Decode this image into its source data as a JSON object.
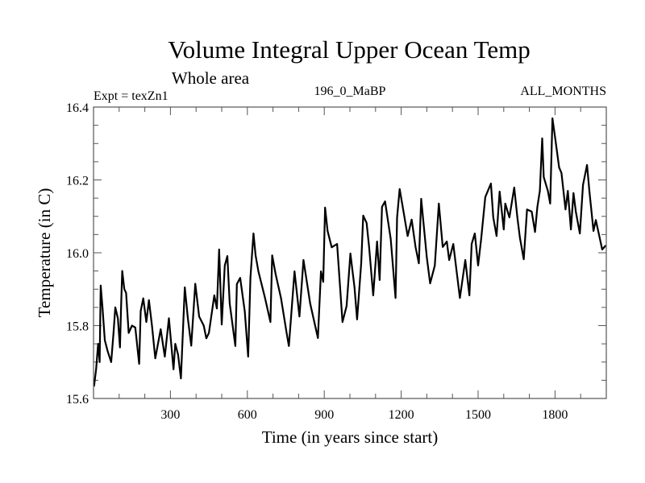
{
  "chart_data": {
    "type": "line",
    "title": "Volume Integral Upper Ocean Temp",
    "subtitle": "Whole area",
    "annotations": {
      "left": "Expt = texZn1",
      "center": "196_0_MaBP",
      "right": "ALL_MONTHS"
    },
    "xlabel": "Time (in years since start)",
    "ylabel": "Temperature (in C)",
    "xlim": [
      0,
      2000
    ],
    "ylim": [
      15.6,
      16.4
    ],
    "xticks": [
      300,
      600,
      900,
      1200,
      1500,
      1800
    ],
    "xtick_labels": [
      "300",
      "600",
      "900",
      "1200",
      "1500",
      "1800"
    ],
    "x_minor_step": 100,
    "yticks": [
      15.6,
      15.8,
      16.0,
      16.2,
      16.4
    ],
    "ytick_labels": [
      "15.6",
      "15.8",
      "16.0",
      "16.2",
      "16.4"
    ],
    "y_minor_step": 0.05,
    "grid": false,
    "legend": "none",
    "series": [
      {
        "name": "Volume Integral Upper Ocean Temp",
        "color": "#000000",
        "x": [
          2,
          10,
          18,
          24,
          28,
          35,
          44,
          55,
          69,
          78,
          85,
          95,
          103,
          108,
          112,
          120,
          127,
          137,
          150,
          163,
          178,
          184,
          194,
          206,
          216,
          228,
          241,
          262,
          278,
          294,
          312,
          319,
          330,
          341,
          356,
          368,
          381,
          397,
          412,
          430,
          440,
          450,
          471,
          481,
          490,
          500,
          512,
          522,
          531,
          553,
          559,
          572,
          590,
          603,
          612,
          624,
          632,
          643,
          669,
          690,
          697,
          710,
          731,
          753,
          762,
          784,
          803,
          819,
          845,
          875,
          887,
          896,
          903,
          913,
          929,
          950,
          971,
          987,
          1002,
          1018,
          1028,
          1044,
          1052,
          1065,
          1075,
          1091,
          1106,
          1116,
          1125,
          1137,
          1159,
          1178,
          1184,
          1194,
          1209,
          1225,
          1241,
          1256,
          1269,
          1278,
          1300,
          1313,
          1331,
          1347,
          1362,
          1378,
          1387,
          1403,
          1429,
          1450,
          1466,
          1475,
          1487,
          1500,
          1512,
          1528,
          1550,
          1559,
          1572,
          1584,
          1600,
          1606,
          1622,
          1641,
          1653,
          1663,
          1678,
          1691,
          1709,
          1722,
          1731,
          1741,
          1750,
          1756,
          1772,
          1781,
          1790,
          1800,
          1816,
          1825,
          1841,
          1850,
          1862,
          1872,
          1881,
          1897,
          1909,
          1925,
          1934,
          1950,
          1959,
          1975,
          1984,
          1998
        ],
        "values": [
          15.633,
          15.68,
          15.75,
          15.7,
          15.91,
          15.85,
          15.76,
          15.73,
          15.7,
          15.78,
          15.85,
          15.82,
          15.74,
          15.86,
          15.95,
          15.9,
          15.89,
          15.78,
          15.8,
          15.795,
          15.695,
          15.84,
          15.875,
          15.81,
          15.87,
          15.8,
          15.71,
          15.79,
          15.715,
          15.82,
          15.68,
          15.75,
          15.72,
          15.655,
          15.905,
          15.82,
          15.745,
          15.915,
          15.825,
          15.8,
          15.765,
          15.78,
          15.883,
          15.847,
          16.009,
          15.803,
          15.965,
          15.991,
          15.861,
          15.744,
          15.914,
          15.931,
          15.839,
          15.715,
          15.931,
          16.053,
          15.993,
          15.949,
          15.876,
          15.81,
          15.993,
          15.942,
          15.876,
          15.78,
          15.744,
          15.949,
          15.825,
          15.98,
          15.861,
          15.766,
          15.949,
          15.92,
          16.124,
          16.06,
          16.015,
          16.024,
          15.81,
          15.854,
          15.998,
          15.905,
          15.817,
          15.971,
          16.102,
          16.082,
          16.016,
          15.883,
          16.031,
          15.925,
          16.126,
          16.141,
          16.038,
          15.876,
          16.097,
          16.175,
          16.113,
          16.046,
          16.091,
          16.016,
          15.971,
          16.148,
          15.987,
          15.916,
          15.965,
          16.135,
          16.016,
          16.031,
          15.98,
          16.024,
          15.876,
          15.98,
          15.883,
          16.024,
          16.053,
          15.965,
          16.038,
          16.153,
          16.19,
          16.097,
          16.046,
          16.168,
          16.064,
          16.135,
          16.097,
          16.179,
          16.097,
          16.042,
          15.982,
          16.119,
          16.113,
          16.057,
          16.126,
          16.17,
          16.314,
          16.208,
          16.17,
          16.135,
          16.369,
          16.318,
          16.234,
          16.219,
          16.119,
          16.17,
          16.064,
          16.164,
          16.113,
          16.053,
          16.186,
          16.241,
          16.17,
          16.06,
          16.09,
          16.038,
          16.009,
          16.02
        ]
      }
    ]
  }
}
